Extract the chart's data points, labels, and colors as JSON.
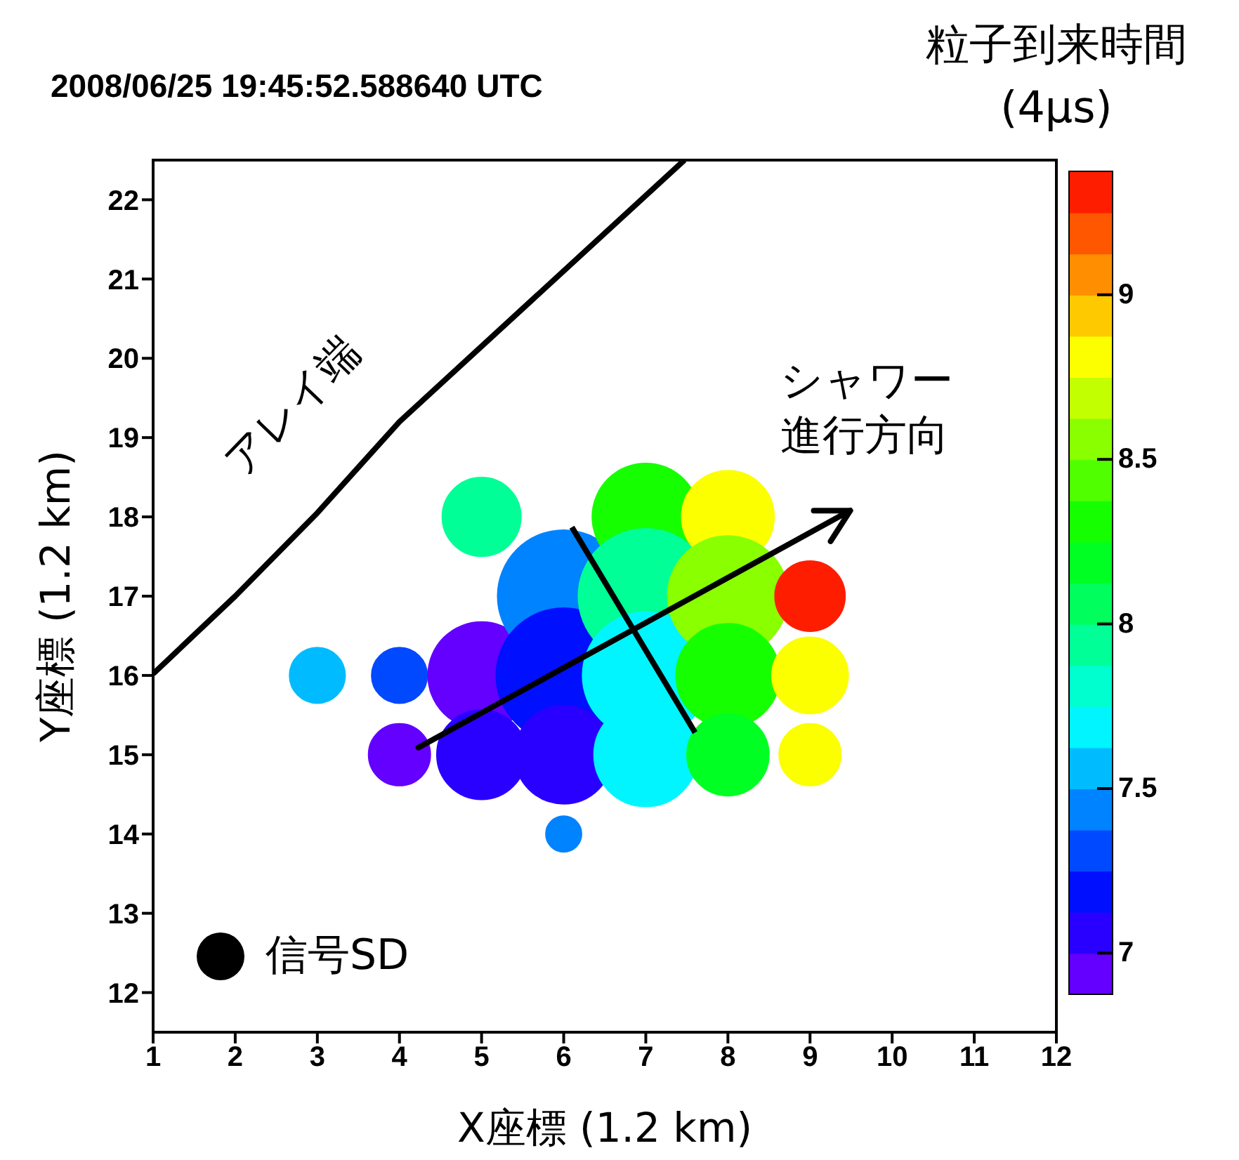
{
  "chart_data": {
    "type": "bubble",
    "title": "2008/06/25 19:45:52.588640 UTC",
    "xlabel": "X座標 (1.2 km)",
    "ylabel": "Y座標 (1.2 km)",
    "clabel": "粒子到来時間\n(4μs)",
    "xlim": [
      1,
      12
    ],
    "xticks": [
      1,
      2,
      3,
      4,
      5,
      6,
      7,
      8,
      9,
      10,
      11,
      12
    ],
    "ylim": [
      11.5,
      22.5
    ],
    "yticks": [
      12,
      13,
      14,
      15,
      16,
      17,
      18,
      19,
      20,
      21,
      22
    ],
    "clim": [
      6.875,
      9.375
    ],
    "cticks": [
      7,
      7.5,
      8,
      8.5,
      9
    ],
    "series": [
      {
        "x": [
          3,
          4,
          4,
          5,
          5,
          5,
          6,
          6,
          6,
          6,
          7,
          7,
          7,
          7,
          8,
          8,
          8,
          8,
          9,
          9,
          9
        ],
        "values": [
          16,
          16,
          15,
          18,
          16,
          15,
          17,
          16,
          15,
          14,
          18,
          17,
          16,
          15,
          18,
          17,
          16,
          15,
          17,
          16,
          15
        ],
        "sizes": [
          0.17,
          0.17,
          0.21,
          0.34,
          0.63,
          0.44,
          0.96,
          1,
          0.53,
          0.07,
          0.63,
          1,
          0.88,
          0.59,
          0.47,
          0.8,
          0.59,
          0.37,
          0.27,
          0.32,
          0.21
        ],
        "colors": [
          "#00bbff",
          "#0049ff",
          "#6300ff",
          "#00ff96",
          "#6300ff",
          "#2900ff",
          "#0083ff",
          "#0010ff",
          "#2900ff",
          "#0083ff",
          "#16ff00",
          "#00ff96",
          "#00f5ff",
          "#00f5ff",
          "#fcff00",
          "#89ff00",
          "#16ff00",
          "#00ff23",
          "#ff1d00",
          "#fcff00",
          "#fcff00"
        ],
        "cvalues": [
          7.6,
          7.35,
          6.9,
          7.9,
          6.95,
          7.0,
          7.45,
          7.2,
          7.1,
          7.45,
          8.3,
          7.9,
          7.65,
          7.65,
          8.8,
          8.5,
          8.35,
          8.2,
          9.3,
          8.8,
          8.8
        ]
      },
      {
        "type": "line",
        "color": "#000000",
        "marker": "none",
        "x": [
          1,
          2,
          3,
          4,
          7.47
        ],
        "values": [
          16.02,
          17,
          18.05,
          19.2,
          22.5
        ]
      },
      {
        "type": "line",
        "color": "#000000",
        "marker": "none",
        "x": [
          6.1,
          7.6
        ],
        "values": [
          17.87,
          15.28
        ]
      }
    ],
    "annotations": [
      {
        "text": "アレイ端",
        "x": 3.5,
        "y": 18.6
      },
      "シャワー進行方向",
      "信号SD"
    ]
  }
}
